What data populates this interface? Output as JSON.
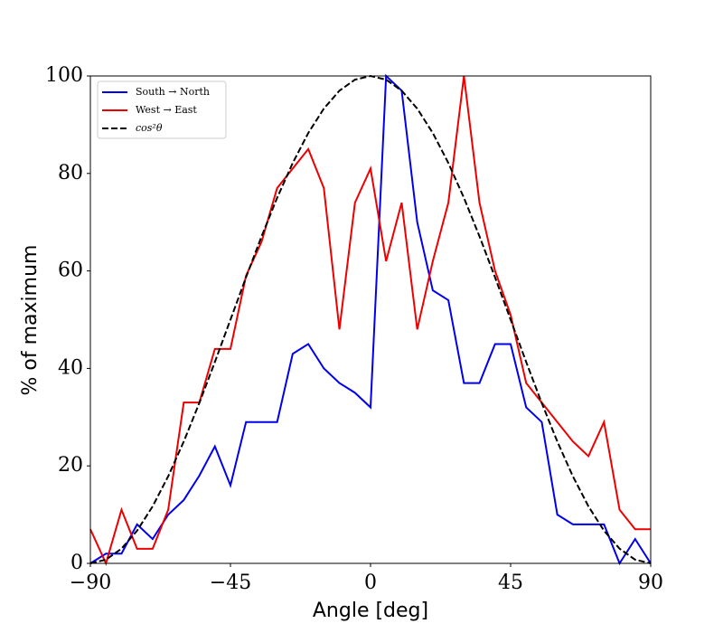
{
  "chart_data": {
    "type": "line",
    "x": [
      -90,
      -85,
      -80,
      -75,
      -70,
      -65,
      -60,
      -55,
      -50,
      -45,
      -40,
      -35,
      -30,
      -25,
      -20,
      -15,
      -10,
      -5,
      0,
      5,
      10,
      15,
      20,
      25,
      30,
      35,
      40,
      45,
      50,
      55,
      60,
      65,
      70,
      75,
      80,
      85,
      90
    ],
    "series": [
      {
        "name": "South → North",
        "color": "#0000ee",
        "linestyle": "solid",
        "values": [
          0,
          2,
          2,
          8,
          5,
          10,
          13,
          18,
          24,
          16,
          29,
          29,
          29,
          43,
          45,
          40,
          37,
          35,
          32,
          100,
          97,
          70,
          56,
          54,
          37,
          37,
          45,
          45,
          32,
          29,
          10,
          8,
          8,
          8,
          0,
          5,
          0
        ]
      },
      {
        "name": "West → East",
        "color": "#ee0000",
        "linestyle": "solid",
        "values": [
          7,
          0,
          11,
          3,
          3,
          11,
          33,
          33,
          44,
          44,
          59,
          66,
          77,
          81,
          85,
          77,
          48,
          74,
          81,
          62,
          74,
          48,
          62,
          74,
          100,
          74,
          60,
          51,
          37,
          33,
          29,
          25,
          22,
          29,
          11,
          7,
          7
        ]
      },
      {
        "name": "cos²θ",
        "color": "#000000",
        "linestyle": "dashed",
        "values": [
          0,
          0.76,
          3.02,
          6.7,
          11.7,
          17.86,
          25,
          32.9,
          41.32,
          50,
          58.68,
          67.1,
          75,
          82.14,
          88.3,
          93.3,
          96.98,
          99.24,
          100,
          99.24,
          96.98,
          93.3,
          88.3,
          82.14,
          75,
          67.1,
          58.68,
          50,
          41.32,
          32.9,
          25,
          17.86,
          11.7,
          6.7,
          3.02,
          0.76,
          0
        ]
      }
    ],
    "xlabel": "Angle [deg]",
    "ylabel": "% of maximum",
    "xlim": [
      -90,
      90
    ],
    "ylim": [
      0,
      100
    ],
    "xticks": [
      {
        "value": -90,
        "label": "−90"
      },
      {
        "value": -45,
        "label": "−45"
      },
      0,
      45,
      90
    ],
    "yticks": [
      0,
      20,
      40,
      60,
      80,
      100
    ],
    "legend": "upper left"
  }
}
